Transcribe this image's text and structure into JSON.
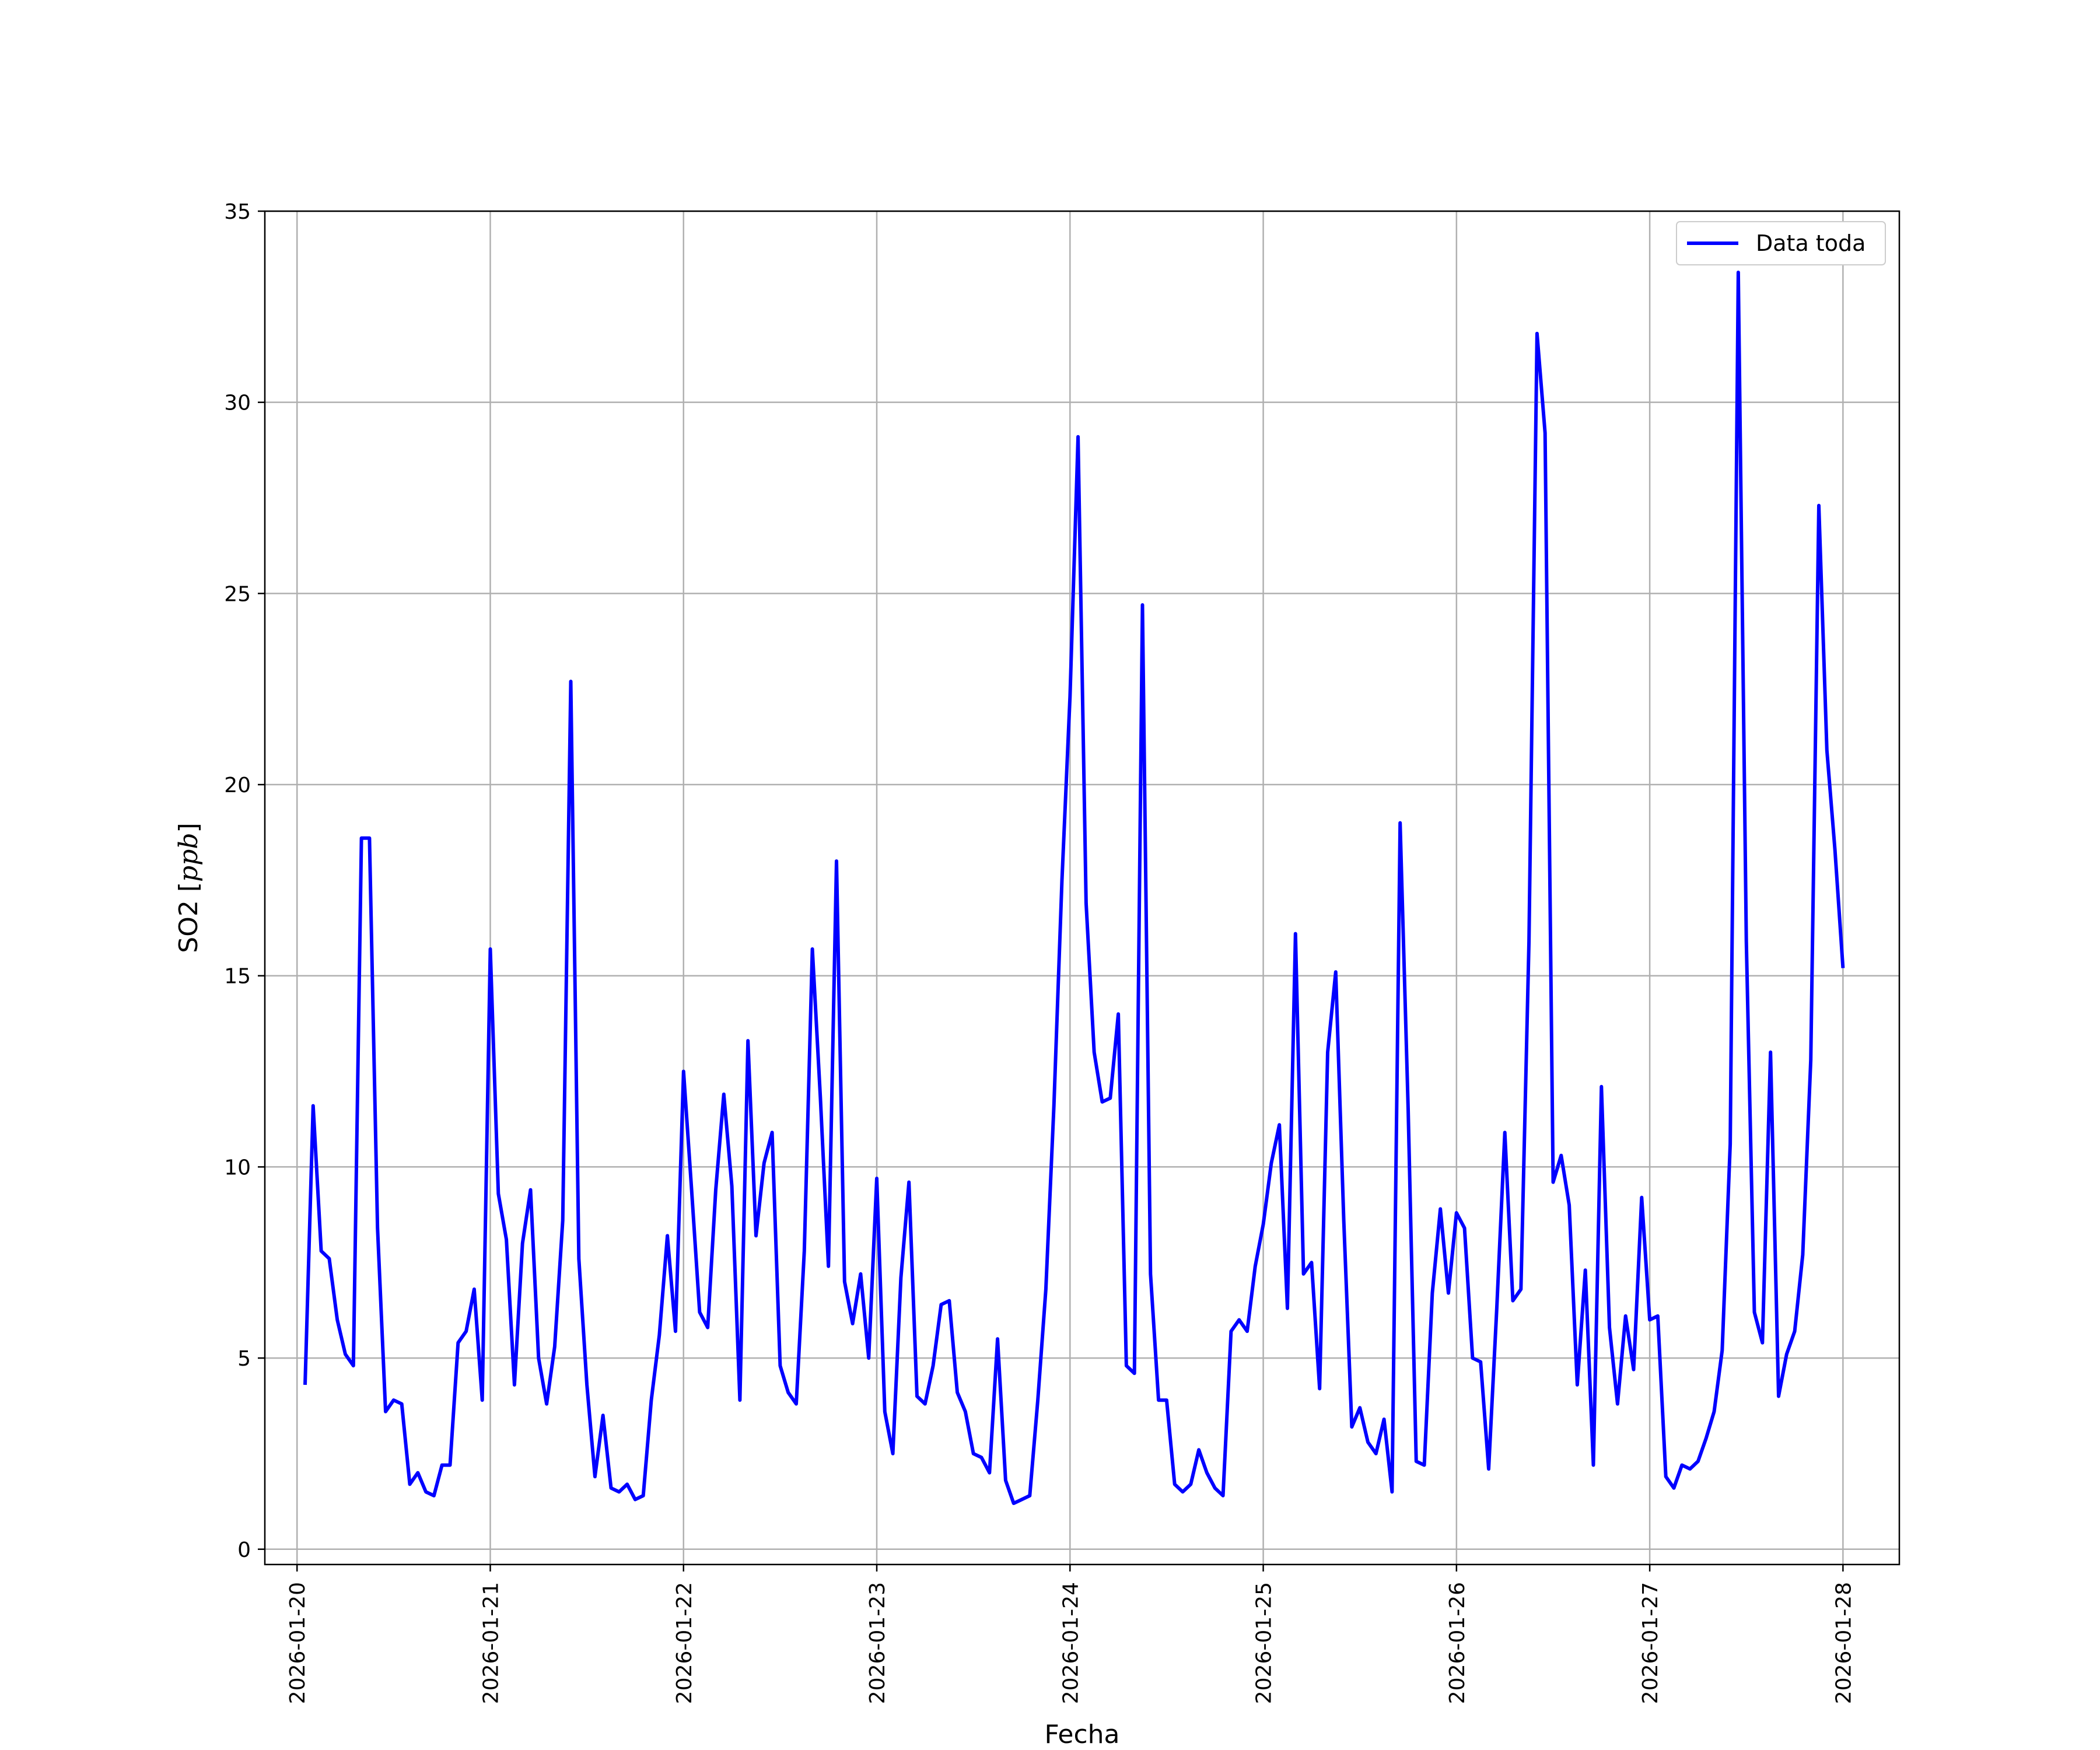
{
  "chart_data": {
    "type": "line",
    "xlabel": "Fecha",
    "ylabel": "SO2 [ppb]",
    "ylabel_unit_italic": "ppb",
    "xlim": [
      "2026-01-19T20:00",
      "2026-01-28T07:00"
    ],
    "ylim": [
      -0.4,
      35
    ],
    "x_ticks": [
      "2026-01-20",
      "2026-01-21",
      "2026-01-22",
      "2026-01-23",
      "2026-01-24",
      "2026-01-25",
      "2026-01-26",
      "2026-01-27",
      "2026-01-28"
    ],
    "y_ticks": [
      0,
      5,
      10,
      15,
      20,
      25,
      30,
      35
    ],
    "grid": true,
    "legend_position": "top-right",
    "series": [
      {
        "name": "Data toda",
        "color": "#0000ff",
        "x_start": "2026-01-20T01:00",
        "step_hours": 1,
        "values": [
          4.3,
          11.6,
          7.8,
          7.6,
          6.0,
          5.1,
          4.8,
          18.6,
          18.6,
          8.4,
          3.6,
          3.9,
          3.8,
          1.7,
          2.0,
          1.5,
          1.4,
          2.2,
          2.2,
          5.4,
          5.7,
          6.8,
          3.9,
          15.7,
          9.3,
          8.1,
          4.3,
          8.0,
          9.4,
          5.0,
          3.8,
          5.3,
          8.6,
          22.7,
          7.6,
          4.3,
          1.9,
          3.5,
          1.6,
          1.5,
          1.7,
          1.3,
          1.4,
          3.9,
          5.6,
          8.2,
          5.7,
          12.5,
          9.4,
          6.2,
          5.8,
          9.4,
          11.9,
          9.5,
          3.9,
          13.3,
          8.2,
          10.1,
          10.9,
          4.8,
          4.1,
          3.8,
          7.8,
          15.7,
          11.8,
          7.4,
          18.0,
          7.0,
          5.9,
          7.2,
          5.0,
          9.7,
          3.6,
          2.5,
          7.1,
          9.6,
          4.0,
          3.8,
          4.8,
          6.4,
          6.5,
          4.1,
          3.6,
          2.5,
          2.4,
          2.0,
          5.5,
          1.8,
          1.2,
          1.3,
          1.4,
          3.9,
          6.8,
          11.6,
          17.5,
          22.3,
          29.1,
          16.9,
          13.0,
          11.7,
          11.8,
          14.0,
          4.8,
          4.6,
          24.7,
          7.2,
          3.9,
          3.9,
          1.7,
          1.5,
          1.7,
          2.6,
          2.0,
          1.6,
          1.4,
          5.7,
          6.0,
          5.7,
          7.4,
          8.5,
          10.1,
          11.1,
          6.3,
          16.1,
          7.2,
          7.5,
          4.2,
          13.0,
          15.1,
          8.6,
          3.2,
          3.7,
          2.8,
          2.5,
          3.4,
          1.5,
          19.0,
          11.5,
          2.3,
          2.2,
          6.7,
          8.9,
          6.7,
          8.8,
          8.4,
          5.0,
          4.9,
          2.1,
          6.3,
          10.9,
          6.5,
          6.8,
          15.9,
          31.8,
          29.2,
          9.6,
          10.3,
          9.0,
          4.3,
          7.3,
          2.2,
          12.1,
          5.8,
          3.8,
          6.1,
          4.7,
          9.2,
          6.0,
          6.1,
          1.9,
          1.6,
          2.2,
          2.1,
          2.3,
          2.9,
          3.6,
          5.2,
          10.6,
          33.4,
          15.9,
          6.2,
          5.4,
          13.0,
          4.0,
          5.1,
          5.7,
          7.7,
          12.8,
          27.3,
          20.9,
          18.3,
          15.2
        ]
      }
    ]
  }
}
